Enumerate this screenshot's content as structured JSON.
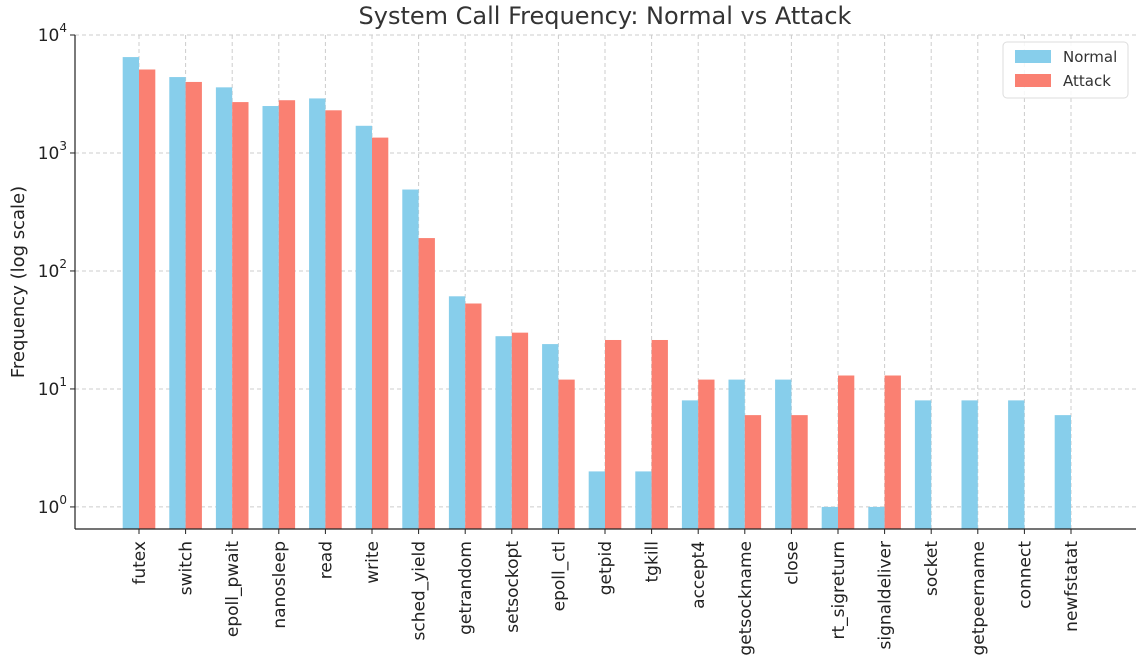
{
  "chart_data": {
    "type": "bar",
    "title": "System Call Frequency: Normal vs Attack",
    "xlabel": "",
    "ylabel": "Frequency (log scale)",
    "yscale": "log",
    "ylim": [
      0.65,
      10000
    ],
    "yticks": [
      {
        "value": 1,
        "base": "10",
        "exp": "0"
      },
      {
        "value": 10,
        "base": "10",
        "exp": "1"
      },
      {
        "value": 100,
        "base": "10",
        "exp": "2"
      },
      {
        "value": 1000,
        "base": "10",
        "exp": "3"
      },
      {
        "value": 10000,
        "base": "10",
        "exp": "4"
      }
    ],
    "grid": true,
    "legend_position": "top-right",
    "categories": [
      "futex",
      "switch",
      "epoll_pwait",
      "nanosleep",
      "read",
      "write",
      "sched_yield",
      "getrandom",
      "setsockopt",
      "epoll_ctl",
      "getpid",
      "tgkill",
      "accept4",
      "getsockname",
      "close",
      "rt_sigreturn",
      "signaldeliver",
      "socket",
      "getpeername",
      "connect",
      "newfstatat"
    ],
    "series": [
      {
        "name": "Normal",
        "color": "#87CEEB",
        "values": [
          6500,
          4400,
          3600,
          2500,
          2900,
          1700,
          490,
          61,
          28,
          24,
          2,
          2,
          8,
          12,
          12,
          1,
          1,
          8,
          8,
          8,
          6
        ]
      },
      {
        "name": "Attack",
        "color": "#FA8072",
        "values": [
          5100,
          4000,
          2700,
          2800,
          2300,
          1350,
          190,
          53,
          30,
          12,
          26,
          26,
          12,
          6,
          6,
          13,
          13,
          null,
          null,
          null,
          null
        ]
      }
    ]
  }
}
